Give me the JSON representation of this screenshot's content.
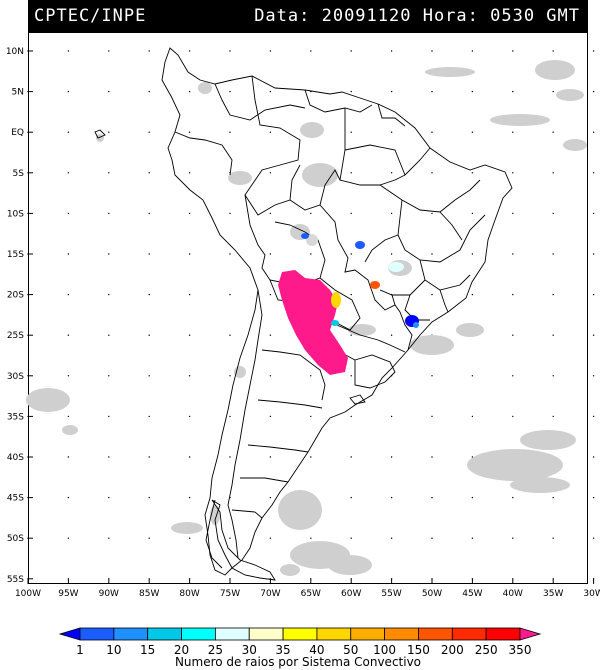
{
  "header": {
    "org": "CPTEC/INPE",
    "datetime": "Data: 20091120 Hora: 0530 GMT"
  },
  "axes": {
    "lat_labels": [
      "10N",
      "5N",
      "EQ",
      "5S",
      "10S",
      "15S",
      "20S",
      "25S",
      "30S",
      "35S",
      "40S",
      "45S",
      "50S",
      "55S"
    ],
    "lon_labels": [
      "100W",
      "95W",
      "90W",
      "85W",
      "80W",
      "75W",
      "70W",
      "65W",
      "60W",
      "55W",
      "50W",
      "45W",
      "40W",
      "35W",
      "30W"
    ]
  },
  "colorbar": {
    "labels": [
      "1",
      "10",
      "15",
      "20",
      "25",
      "30",
      "35",
      "40",
      "50",
      "100",
      "150",
      "200",
      "250",
      "350"
    ],
    "colors": [
      "#0000ff",
      "#1a5cff",
      "#1e90ff",
      "#00c8e6",
      "#00ffff",
      "#e0ffff",
      "#ffffcc",
      "#ffff00",
      "#ffd700",
      "#ffae00",
      "#ff8c00",
      "#ff5500",
      "#ff2a00",
      "#ff0000",
      "#ff1a8c"
    ],
    "caption": "Numero de raios por Sistema Convectivo"
  }
}
